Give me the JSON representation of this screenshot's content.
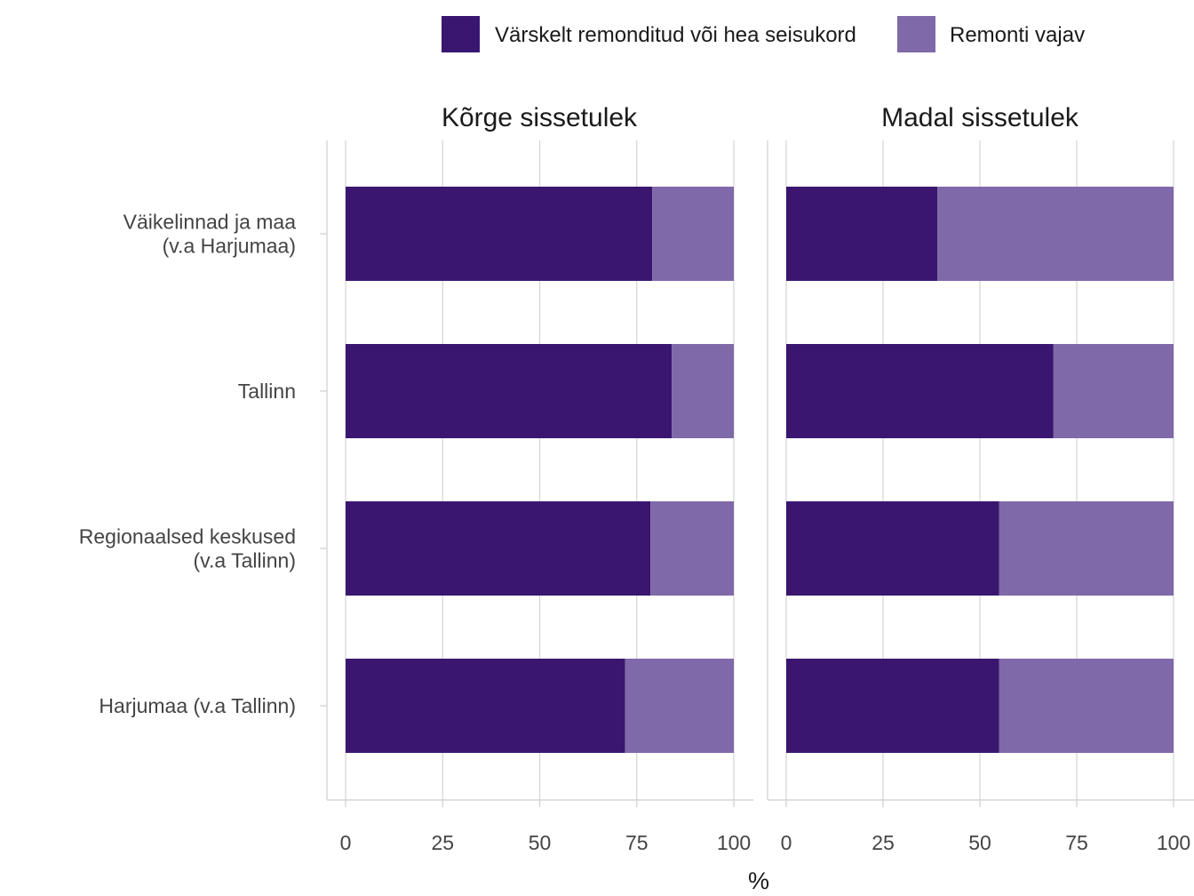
{
  "chart_data": {
    "type": "bar",
    "orientation": "horizontal",
    "stacked": true,
    "xlabel": "%",
    "xlim": [
      0,
      100
    ],
    "xticks": [
      "0",
      "25",
      "50",
      "75",
      "100"
    ],
    "legend_position": "top-right",
    "categories": [
      [
        "Väikelinnad ja maa",
        "(v.a Harjumaa)"
      ],
      [
        "Tallinn"
      ],
      [
        "Regionaalsed keskused",
        "(v.a Tallinn)"
      ],
      [
        "Harjumaa (v.a Tallinn)"
      ]
    ],
    "series": [
      {
        "name": "Värskelt remonditud või hea seisukord",
        "color": "#3a1670"
      },
      {
        "name": "Remonti vajav",
        "color": "#7f69a8"
      }
    ],
    "panels": [
      {
        "title": "Kõrge sissetulek",
        "values": [
          [
            79,
            21
          ],
          [
            84,
            16
          ],
          [
            78.5,
            21.5
          ],
          [
            72,
            28
          ]
        ]
      },
      {
        "title": "Madal sissetulek",
        "values": [
          [
            39,
            61
          ],
          [
            69,
            31
          ],
          [
            55,
            45
          ],
          [
            55,
            45
          ]
        ]
      }
    ]
  }
}
